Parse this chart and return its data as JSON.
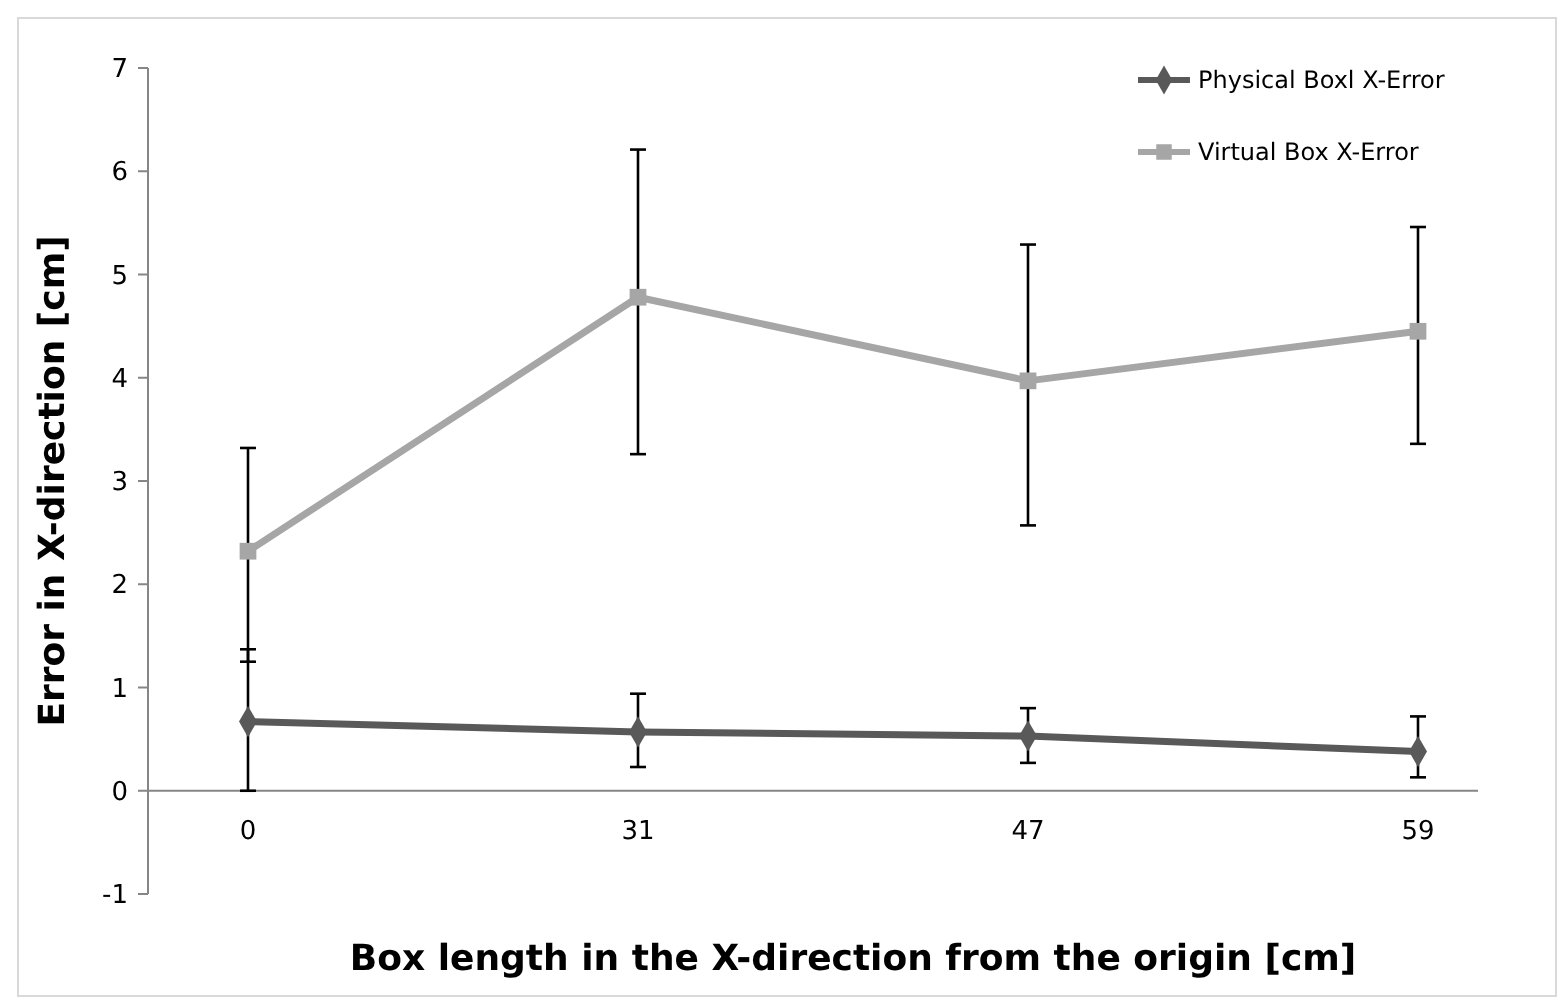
{
  "chart_data": {
    "type": "line",
    "xlabel": "Box length in the X-direction from the origin [cm]",
    "ylabel": "Error in X-direction [cm]",
    "categories": [
      "0",
      "31",
      "47",
      "59"
    ],
    "series": [
      {
        "name": "Physical Boxl X-Error",
        "color": "#595959",
        "marker": "diamond",
        "values": [
          0.67,
          0.57,
          0.53,
          0.38
        ],
        "errors": [
          [
            0,
            1.37
          ],
          [
            0.23,
            0.94
          ],
          [
            0.27,
            0.8
          ],
          [
            0.13,
            0.72
          ]
        ]
      },
      {
        "name": "Virtual Box X-Error",
        "color": "#a6a6a6",
        "marker": "square",
        "values": [
          2.32,
          4.78,
          3.97,
          4.45
        ],
        "errors": [
          [
            1.25,
            3.32
          ],
          [
            3.26,
            6.21
          ],
          [
            2.57,
            5.29
          ],
          [
            3.36,
            5.46
          ]
        ]
      }
    ],
    "ylim": [
      -1,
      7
    ],
    "yticks": [
      -1,
      0,
      1,
      2,
      3,
      4,
      5,
      6,
      7
    ],
    "grid": false,
    "legend": "top right"
  }
}
